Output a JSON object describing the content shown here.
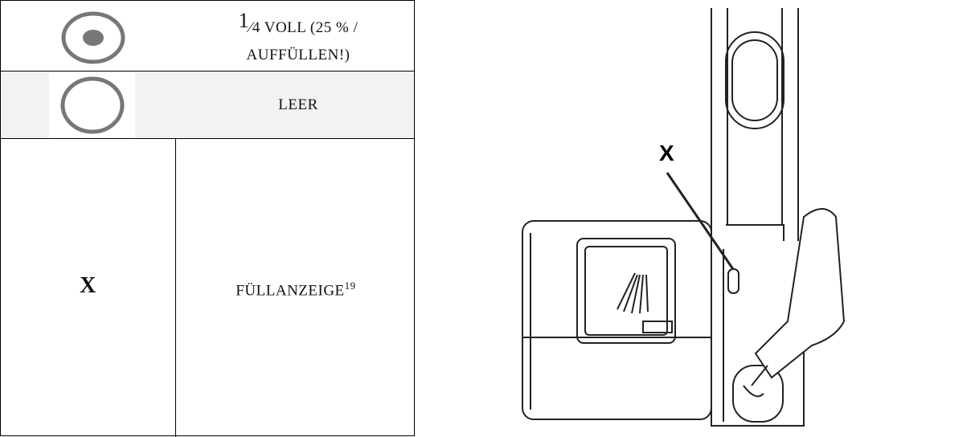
{
  "table": {
    "rows": [
      {
        "numerator": "1",
        "text": "⁄4 VOLL (25 % /",
        "text2": "AUFFÜLLEN!)"
      },
      {
        "text": "LEER"
      },
      {
        "key": "X",
        "text": "FÜLLANZEIGE",
        "footnote": "19"
      }
    ]
  },
  "figure": {
    "label": "X"
  }
}
